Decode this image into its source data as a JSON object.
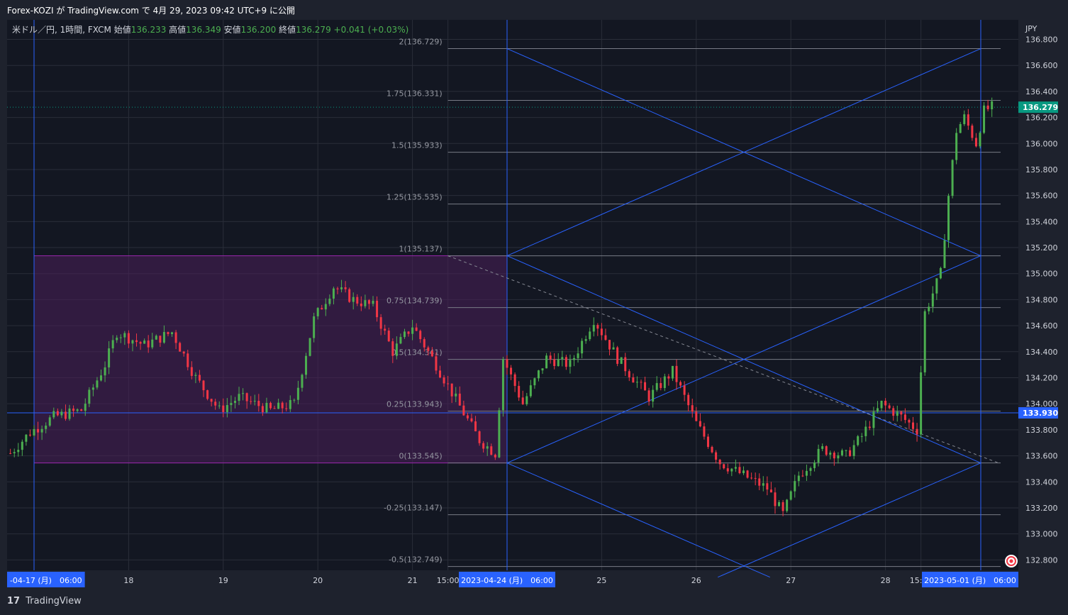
{
  "header": {
    "publish_line": "Forex-KOZI が TradingView.com で 4月 29, 2023 09:42 UTC+9 に公開"
  },
  "chart_data": {
    "type": "candlestick",
    "symbol_line": "米ドル／円, 1時間, FXCM",
    "ohlc_labels": [
      {
        "label": "始値",
        "value": "136.233"
      },
      {
        "label": "高値",
        "value": "136.349"
      },
      {
        "label": "安値",
        "value": "136.200"
      },
      {
        "label": "終値",
        "value": "136.279"
      }
    ],
    "change": "+0.041 (+0.03%)",
    "currency": "JPY",
    "ylim": [
      132.72,
      136.95
    ],
    "y_ticks": [
      "136.800",
      "136.600",
      "136.400",
      "136.200",
      "136.000",
      "135.800",
      "135.600",
      "135.400",
      "135.200",
      "135.000",
      "134.800",
      "134.600",
      "134.400",
      "134.200",
      "134.000",
      "133.800",
      "133.600",
      "133.400",
      "133.200",
      "133.000",
      "132.800"
    ],
    "x_ticks": [
      {
        "x": "04-18",
        "label": "18"
      },
      {
        "x": "04-19",
        "label": "19"
      },
      {
        "x": "04-20",
        "label": "20"
      },
      {
        "x": "04-21",
        "label": "21"
      },
      {
        "x": "04-21 15:00",
        "label": "15:00"
      },
      {
        "x": "04-25",
        "label": "25"
      },
      {
        "x": "04-26",
        "label": "26"
      },
      {
        "x": "04-27",
        "label": "27"
      },
      {
        "x": "04-28",
        "label": "28"
      },
      {
        "x": "04-28 15:00",
        "label": "15:00"
      }
    ],
    "x_highlight_labels": [
      {
        "x": "04-17 06:00",
        "label": "-04-17 (月)　06:00"
      },
      {
        "x": "04-24 06:00",
        "label": "2023-04-24 (月)　06:00"
      },
      {
        "x": "05-01 06:00",
        "label": "2023-05-01 (月)　06:00"
      }
    ],
    "price_labels": {
      "last": "136.279",
      "horizontal": "133.930"
    },
    "fib_levels": [
      {
        "ratio": 2,
        "label": "2(136.729)",
        "price": 136.729
      },
      {
        "ratio": 1.75,
        "label": "1.75(136.331)",
        "price": 136.331
      },
      {
        "ratio": 1.5,
        "label": "1.5(135.933)",
        "price": 135.933
      },
      {
        "ratio": 1.25,
        "label": "1.25(135.535)",
        "price": 135.535
      },
      {
        "ratio": 1,
        "label": "1(135.137)",
        "price": 135.137
      },
      {
        "ratio": 0.75,
        "label": "0.75(134.739)",
        "price": 134.739
      },
      {
        "ratio": 0.5,
        "label": "0.5(134.341)",
        "price": 134.341
      },
      {
        "ratio": 0.25,
        "label": "0.25(133.943)",
        "price": 133.943
      },
      {
        "ratio": 0,
        "label": "0(133.545)",
        "price": 133.545
      },
      {
        "ratio": -0.25,
        "label": "-0.25(133.147)",
        "price": 133.147
      },
      {
        "ratio": -0.5,
        "label": "-0.5(132.749)",
        "price": 132.749
      }
    ],
    "rectangle": {
      "x_start": "04-17 06:00",
      "x_end": "04-24 06:00",
      "price_top": 135.137,
      "price_bottom": 133.545
    },
    "vertical_lines": [
      "04-17 06:00",
      "04-24 06:00",
      "05-01 06:00"
    ],
    "horizontal_line": 133.93,
    "trend_dashed": {
      "from": {
        "x": "04-21 15:00",
        "price": 135.137
      },
      "to": {
        "x": "05-01 06:00",
        "price": 133.545
      }
    },
    "close_path": [
      [
        "04-17 00:00",
        133.62
      ],
      [
        "04-17 05:00",
        133.78
      ],
      [
        "04-17 11:00",
        133.9
      ],
      [
        "04-17 18:00",
        133.95
      ],
      [
        "04-18 00:00",
        134.3
      ],
      [
        "04-18 03:00",
        134.55
      ],
      [
        "04-18 10:00",
        134.45
      ],
      [
        "04-18 17:00",
        134.55
      ],
      [
        "04-18 23:00",
        134.2
      ],
      [
        "04-19 05:00",
        133.95
      ],
      [
        "04-19 10:00",
        134.05
      ],
      [
        "04-19 18:00",
        133.95
      ],
      [
        "04-20 00:00",
        134.0
      ],
      [
        "04-20 05:00",
        134.65
      ],
      [
        "04-20 10:00",
        134.9
      ],
      [
        "04-20 15:00",
        134.8
      ],
      [
        "04-20 20:00",
        134.75
      ],
      [
        "04-21 01:00",
        134.4
      ],
      [
        "04-21 06:00",
        134.6
      ],
      [
        "04-21 12:00",
        134.3
      ],
      [
        "04-21 18:00",
        133.98
      ],
      [
        "04-21 23:00",
        133.72
      ],
      [
        "04-24 03:00",
        133.62
      ],
      [
        "04-24 05:00",
        134.35
      ],
      [
        "04-24 10:00",
        134.0
      ],
      [
        "04-24 16:00",
        134.35
      ],
      [
        "04-24 22:00",
        134.3
      ],
      [
        "04-25 04:00",
        134.65
      ],
      [
        "04-25 10:00",
        134.35
      ],
      [
        "04-25 18:00",
        134.05
      ],
      [
        "04-26 00:00",
        134.25
      ],
      [
        "04-26 06:00",
        133.85
      ],
      [
        "04-26 12:00",
        133.55
      ],
      [
        "04-26 18:00",
        133.45
      ],
      [
        "04-27 00:00",
        133.35
      ],
      [
        "04-27 04:00",
        133.15
      ],
      [
        "04-27 08:00",
        133.45
      ],
      [
        "04-27 14:00",
        133.65
      ],
      [
        "04-27 20:00",
        133.6
      ],
      [
        "04-28 00:00",
        133.75
      ],
      [
        "04-28 05:00",
        134.0
      ],
      [
        "04-28 10:00",
        133.9
      ],
      [
        "04-28 14:00",
        133.8
      ],
      [
        "04-28 16:00",
        134.7
      ],
      [
        "04-28 20:00",
        135.0
      ],
      [
        "04-28 22:00",
        135.6
      ],
      [
        "04-29 00:00",
        136.1
      ],
      [
        "04-29 02:00",
        136.2
      ],
      [
        "04-29 05:00",
        136.0
      ],
      [
        "04-29 07:00",
        136.25
      ],
      [
        "04-29 09:00",
        136.28
      ]
    ],
    "colors": {
      "up": "#4caf50",
      "down": "#f23645",
      "lines": "#2962ff",
      "rect_fill": "#4b1f5a",
      "rect_border": "#9c27b0",
      "fib": "#787b86",
      "last_price": "#089981",
      "horizontal_label": "#2962ff"
    }
  },
  "footer": {
    "brand": "TradingView",
    "logo": "17"
  }
}
